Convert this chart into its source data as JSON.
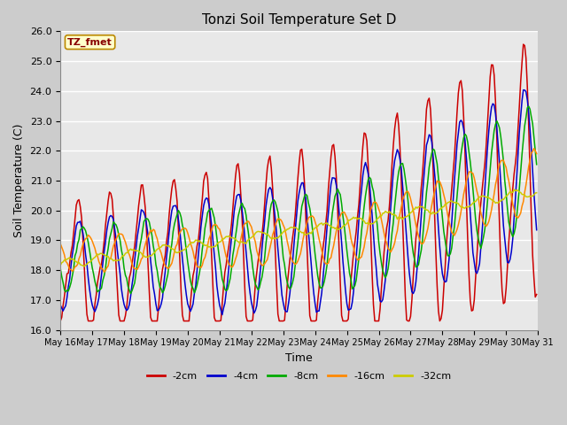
{
  "title": "Tonzi Soil Temperature Set D",
  "xlabel": "Time",
  "ylabel": "Soil Temperature (C)",
  "ylim": [
    16.0,
    26.0
  ],
  "yticks": [
    16.0,
    17.0,
    18.0,
    19.0,
    20.0,
    21.0,
    22.0,
    23.0,
    24.0,
    25.0,
    26.0
  ],
  "fig_bg_color": "#cccccc",
  "plot_bg_color": "#e8e8e8",
  "annotation_text": "TZ_fmet",
  "annotation_bg": "#ffffcc",
  "annotation_border": "#bb8800",
  "legend_labels": [
    "-2cm",
    "-4cm",
    "-8cm",
    "-16cm",
    "-32cm"
  ],
  "line_colors": [
    "#cc0000",
    "#0000cc",
    "#00aa00",
    "#ff8800",
    "#cccc00"
  ],
  "xtick_labels": [
    "May 16",
    "May 17",
    "May 18",
    "May 19",
    "May 20",
    "May 21",
    "May 22",
    "May 23",
    "May 24",
    "May 25",
    "May 26",
    "May 27",
    "May 28",
    "May 29",
    "May 30",
    "May 31"
  ]
}
